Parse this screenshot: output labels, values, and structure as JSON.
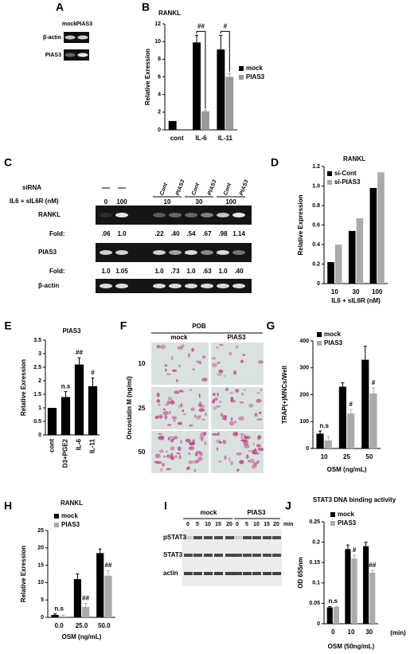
{
  "gel_a": {
    "panel": "A",
    "lanes": [
      "mock",
      "PIAS3"
    ],
    "rows": [
      "β-actin",
      "PIAS3"
    ]
  },
  "gel_c": {
    "panel": "C",
    "sirna_label": "siRNA",
    "sirna": [
      "Cont",
      "PIAS3",
      "Cont",
      "PIAS3",
      "Cont",
      "PIAS3"
    ],
    "treatment_label": "IL6 + sIL6R (nM)",
    "doses": [
      "0",
      "100",
      "10",
      "30",
      "100"
    ],
    "rows": [
      {
        "name": "RANKL",
        "fold_label": "Fold:",
        "fold": [
          ".06",
          "1.0",
          ".22",
          ".40",
          ".54",
          ".67",
          ".98",
          "1.14"
        ]
      },
      {
        "name": "PIAS3",
        "fold_label": "Fold:",
        "fold": [
          "1.0",
          "1.05",
          "1.0",
          ".73",
          "1.0",
          ".63",
          "1.0",
          ".40"
        ]
      },
      {
        "name": "β-actin"
      }
    ]
  },
  "panel_f": {
    "panel": "F",
    "title": "POB",
    "columns": [
      "mock",
      "PIAS3"
    ],
    "rows": [
      "10",
      "25",
      "50"
    ],
    "ylabel": "Oncostatin M (ng/ml)"
  },
  "blot_i": {
    "panel": "I",
    "groups": [
      "mock",
      "PIAS3"
    ],
    "times": [
      "0",
      "5",
      "10",
      "15",
      "20"
    ],
    "time_unit": "min",
    "rows": [
      "pSTAT3",
      "STAT3",
      "actin"
    ]
  },
  "chart_data": [
    {
      "type": "bar",
      "panel": "B",
      "title": "RANKL",
      "ylabel": "Relative Exression",
      "categories": [
        "cont",
        "IL-6",
        "IL-11"
      ],
      "series": [
        {
          "name": "mock",
          "color": "#000000",
          "values": [
            1.0,
            9.9,
            9.1
          ],
          "errors": [
            null,
            0.8,
            1.6
          ]
        },
        {
          "name": "PIAS3",
          "color": "#999999",
          "values": [
            null,
            2.1,
            6.0
          ],
          "errors": [
            null,
            0.1,
            0.4
          ]
        }
      ],
      "bracket_annotations": [
        null,
        "##",
        "#"
      ],
      "ylim": [
        0,
        12
      ],
      "yticks": [
        0,
        2,
        4,
        6,
        8,
        10,
        12
      ],
      "legend": "right"
    },
    {
      "type": "bar",
      "panel": "D",
      "title": "RANKL",
      "ylabel": "Relative Expression",
      "xlabel": "IL6 + sIL6R (nM)",
      "categories": [
        "10",
        "30",
        "100"
      ],
      "series": [
        {
          "name": "si-Cont",
          "color": "#000000",
          "values": [
            0.22,
            0.54,
            0.98
          ]
        },
        {
          "name": "si-PIAS3",
          "color": "#aaaaaa",
          "values": [
            0.4,
            0.67,
            1.14
          ]
        }
      ],
      "ylim": [
        0,
        1.2
      ],
      "yticks": [
        0,
        0.2,
        0.4,
        0.6,
        0.8,
        {
          "value": 1,
          "label": "1.0"
        },
        1.2
      ],
      "legend": "upper left"
    },
    {
      "type": "bar",
      "panel": "E",
      "title": "PIAS3",
      "ylabel": "Relative Exression",
      "categories": [
        "cont",
        "D3+PGE2",
        "IL-6",
        "IL-11"
      ],
      "series": [
        {
          "color": "#000000",
          "values": [
            1.0,
            1.4,
            2.6,
            1.8
          ],
          "errors": [
            null,
            0.2,
            0.25,
            0.3
          ],
          "annotations": [
            null,
            "n.s",
            "##",
            "#"
          ]
        }
      ],
      "ylim": [
        0,
        3.5
      ],
      "yticks": [
        0,
        0.5,
        1,
        1.5,
        2,
        2.5,
        3,
        3.5
      ]
    },
    {
      "type": "bar",
      "panel": "G",
      "ylabel": "TRAP(+)MNCs/Well",
      "xlabel": "OSM (ng/mL)",
      "categories": [
        "10",
        "25",
        "50"
      ],
      "series": [
        {
          "name": "mock",
          "color": "#000000",
          "values": [
            55,
            230,
            330
          ],
          "errors": [
            10,
            15,
            50
          ]
        },
        {
          "name": "PIAS3",
          "color": "#aaaaaa",
          "values": [
            30,
            130,
            205
          ],
          "errors": [
            15,
            15,
            20
          ],
          "annotations": [
            null,
            "#",
            "#"
          ]
        }
      ],
      "category_annotations": [
        "n.s",
        null,
        null
      ],
      "ylim": [
        0,
        400
      ],
      "yticks": [
        0,
        100,
        200,
        300,
        400
      ],
      "legend": "upper left"
    },
    {
      "type": "bar",
      "panel": "H",
      "title": "RANKL",
      "ylabel": "Relative Exression",
      "xlabel": "OSM (ng/mL)",
      "categories": [
        "0.0",
        "25.0",
        "50.0"
      ],
      "series": [
        {
          "name": "mock",
          "color": "#000000",
          "values": [
            0.7,
            11,
            18.5
          ],
          "errors": [
            0.3,
            1.5,
            1.2
          ]
        },
        {
          "name": "PIAS3",
          "color": "#aaaaaa",
          "values": [
            0.3,
            3,
            12
          ],
          "errors": [
            0.3,
            1,
            1.5
          ],
          "annotations": [
            null,
            "##",
            "##"
          ]
        }
      ],
      "category_annotations": [
        "n.s",
        null,
        null
      ],
      "ylim": [
        0,
        25
      ],
      "yticks": [
        0,
        5,
        10,
        15,
        20,
        25
      ],
      "legend": "upper left"
    },
    {
      "type": "bar",
      "panel": "J",
      "title": "STAT3 DNA binding activity",
      "ylabel": "OD 655nm",
      "xlabel": "OSM (50ng/mL)",
      "x_unit": "(min)",
      "categories": [
        "0",
        "10",
        "30"
      ],
      "series": [
        {
          "name": "mock",
          "color": "#000000",
          "values": [
            0.04,
            0.183,
            0.19
          ],
          "errors": [
            0.002,
            0.01,
            0.01
          ]
        },
        {
          "name": "PIAS3",
          "color": "#aaaaaa",
          "values": [
            0.041,
            0.16,
            0.125
          ],
          "errors": [
            0.002,
            0.008,
            0.006
          ],
          "annotations": [
            null,
            "#",
            "##"
          ]
        }
      ],
      "category_annotations": [
        "n.s",
        null,
        null
      ],
      "ylim": [
        0,
        0.25
      ],
      "yticks": [
        0,
        0.05,
        0.1,
        0.15,
        0.2,
        0.25
      ],
      "legend": "upper left"
    }
  ]
}
